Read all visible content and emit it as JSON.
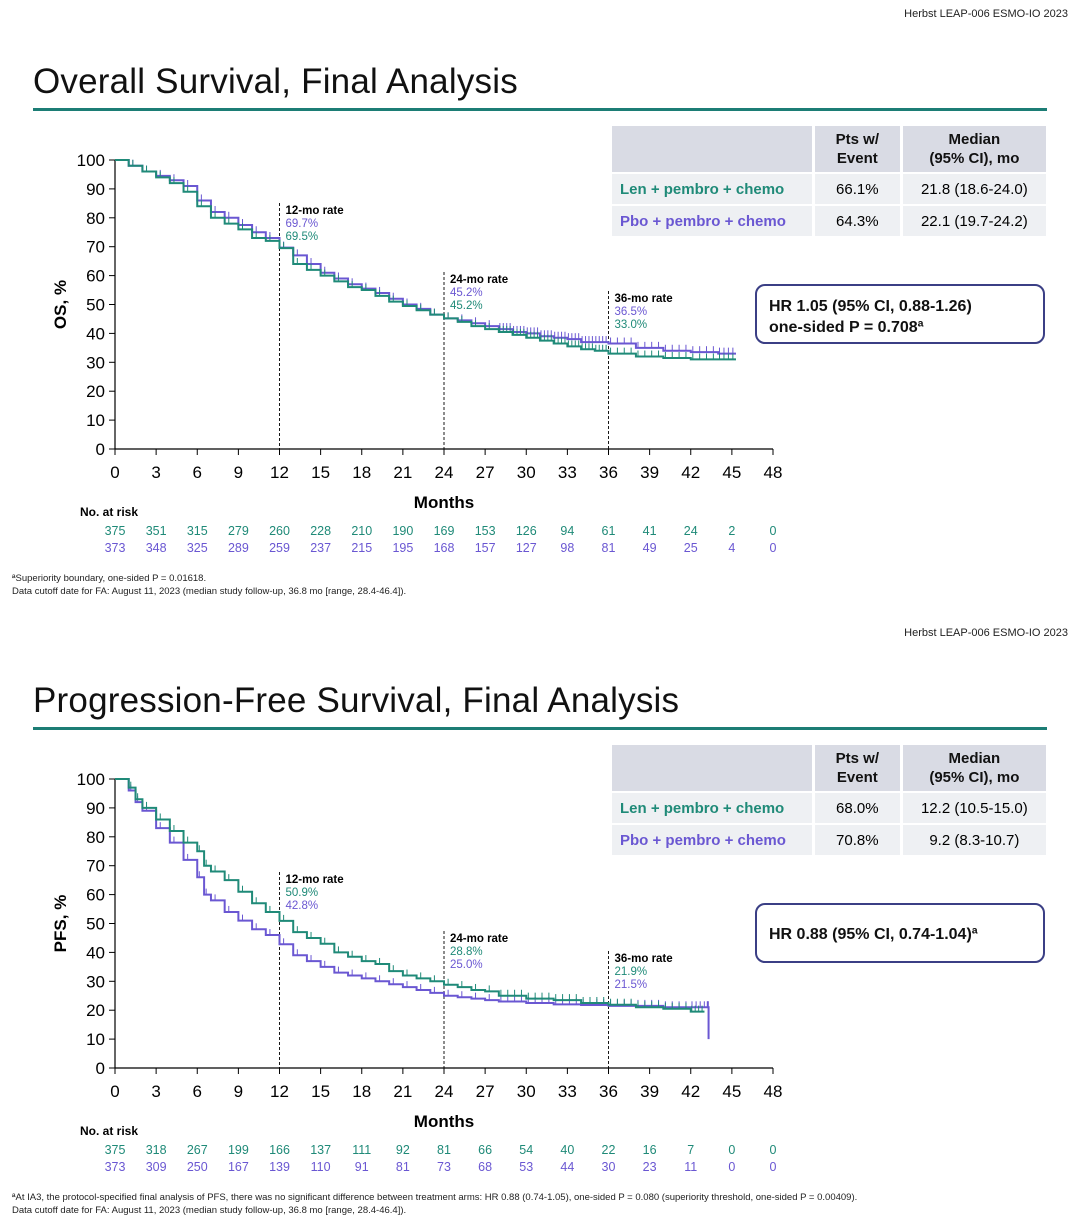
{
  "colors": {
    "len": "#1f8a78",
    "pbo": "#6a57d2",
    "rule": "#1c7d75",
    "box": "#3b3f85"
  },
  "slides": [
    {
      "header": "Herbst LEAP-006  ESMO-IO  2023",
      "title": "Overall Survival, Final Analysis",
      "table": {
        "h1": "Pts w/\nEvent",
        "h2": "Median\n(95% CI), mo",
        "rows": [
          {
            "label": "Len + pembro + chemo",
            "event": "66.1%",
            "median": "21.8 (18.6-24.0)"
          },
          {
            "label": "Pbo + pembro + chemo",
            "event": "64.3%",
            "median": "22.1 (19.7-24.2)"
          }
        ]
      },
      "hr_line1": "HR 1.05 (95%  CI,  0.88-1.26)",
      "hr_line2": "one-sided  P = 0.708ª",
      "footnote1": "ªSuperiority boundary,  one-sided  P = 0.01618.",
      "footnote2": "Data cutoff date for FA: August 11, 2023 (median study follow-up,  36.8 mo [range, 28.4-46.4])."
    },
    {
      "header": "Herbst LEAP-006  ESMO-IO  2023",
      "title": "Progression-Free Survival, Final Analysis",
      "table": {
        "h1": "Pts w/\nEvent",
        "h2": "Median\n(95% CI), mo",
        "rows": [
          {
            "label": "Len + pembro + chemo",
            "event": "68.0%",
            "median": "12.2 (10.5-15.0)"
          },
          {
            "label": "Pbo + pembro + chemo",
            "event": "70.8%",
            "median": "9.2 (8.3-10.7)"
          }
        ]
      },
      "hr_line1": "HR  0.88 (95%  CI,  0.74-1.04)ª",
      "hr_line2": "",
      "footnote1": "ªAt IA3, the protocol-specified final analysis of PFS, there was no significant difference between treatment arms: HR 0.88 (0.74-1.05),  one-sided  P = 0.080 (superiority threshold, one-sided  P = 0.00409).",
      "footnote2": "Data cutoff date for FA: August 11, 2023 (median study follow-up,  36.8 mo [range, 28.4-46.4])."
    }
  ],
  "chart_data": [
    {
      "type": "line",
      "ylabel": "OS, %",
      "xlabel": "Months",
      "xlim": [
        0,
        48
      ],
      "ylim": [
        0,
        100
      ],
      "xticks": [
        0,
        3,
        6,
        9,
        12,
        15,
        18,
        21,
        24,
        27,
        30,
        33,
        36,
        39,
        42,
        45,
        48
      ],
      "yticks": [
        0,
        10,
        20,
        30,
        40,
        50,
        60,
        70,
        80,
        90,
        100
      ],
      "annotations": [
        {
          "x": 12,
          "title": "12-mo rate",
          "values": [
            "69.7%",
            "69.5%"
          ],
          "value_colors": [
            "pbo",
            "len"
          ]
        },
        {
          "x": 24,
          "title": "24-mo rate",
          "values": [
            "45.2%",
            "45.2%"
          ],
          "value_colors": [
            "pbo",
            "len"
          ]
        },
        {
          "x": 36,
          "title": "36-mo rate",
          "values": [
            "36.5%",
            "33.0%"
          ],
          "value_colors": [
            "pbo",
            "len"
          ]
        }
      ],
      "series": [
        {
          "name": "Len + pembro + chemo",
          "color": "len",
          "x": [
            0,
            1,
            2,
            3,
            4,
            5,
            6,
            7,
            8,
            9,
            10,
            11,
            12,
            13,
            14,
            15,
            16,
            17,
            18,
            19,
            20,
            21,
            22,
            23,
            24,
            25,
            26,
            27,
            28,
            29,
            30,
            31,
            32,
            33,
            34,
            35,
            36,
            38,
            40,
            42,
            44,
            45.3
          ],
          "y": [
            100,
            98,
            96,
            94,
            92,
            89,
            84,
            80,
            78,
            76,
            73,
            72,
            69.5,
            64,
            62,
            60,
            58,
            56,
            55,
            53,
            51,
            49.5,
            48,
            46.5,
            45.2,
            44,
            42.5,
            41.5,
            40.5,
            39.5,
            38.5,
            37.5,
            36.5,
            35.5,
            34.5,
            34,
            33,
            32,
            31.5,
            31,
            31,
            31
          ]
        },
        {
          "name": "Pbo + pembro + chemo",
          "color": "pbo",
          "x": [
            0,
            1,
            2,
            3,
            4,
            5,
            6,
            7,
            8,
            9,
            10,
            11,
            12,
            13,
            14,
            15,
            16,
            17,
            18,
            19,
            20,
            21,
            22,
            23,
            24,
            25,
            26,
            27,
            28,
            29,
            30,
            31,
            32,
            33,
            34,
            35,
            36,
            38,
            40,
            42,
            44,
            45.3
          ],
          "y": [
            100,
            98,
            96,
            94.5,
            93,
            91,
            86,
            82,
            80,
            77.5,
            75,
            73,
            69.7,
            67,
            64,
            61,
            59,
            57,
            55.5,
            54,
            52,
            50,
            48.5,
            46.5,
            45.2,
            44.5,
            43.5,
            42.5,
            41.5,
            40.5,
            40,
            39,
            38.5,
            38,
            37,
            37,
            36.5,
            35,
            34,
            33.5,
            33,
            33
          ]
        }
      ],
      "at_risk": {
        "label": "No. at risk",
        "len": [
          "375",
          "351",
          "315",
          "279",
          "260",
          "228",
          "210",
          "190",
          "169",
          "153",
          "126",
          "94",
          "61",
          "41",
          "24",
          "2",
          "0"
        ],
        "pbo": [
          "373",
          "348",
          "325",
          "289",
          "259",
          "237",
          "215",
          "195",
          "168",
          "157",
          "127",
          "98",
          "81",
          "49",
          "25",
          "4",
          "0"
        ]
      }
    },
    {
      "type": "line",
      "ylabel": "PFS, %",
      "xlabel": "Months",
      "xlim": [
        0,
        48
      ],
      "ylim": [
        0,
        100
      ],
      "xticks": [
        0,
        3,
        6,
        9,
        12,
        15,
        18,
        21,
        24,
        27,
        30,
        33,
        36,
        39,
        42,
        45,
        48
      ],
      "yticks": [
        0,
        10,
        20,
        30,
        40,
        50,
        60,
        70,
        80,
        90,
        100
      ],
      "annotations": [
        {
          "x": 12,
          "title": "12-mo rate",
          "values": [
            "50.9%",
            "42.8%"
          ],
          "value_colors": [
            "len",
            "pbo"
          ]
        },
        {
          "x": 24,
          "title": "24-mo rate",
          "values": [
            "28.8%",
            "25.0%"
          ],
          "value_colors": [
            "len",
            "pbo"
          ]
        },
        {
          "x": 36,
          "title": "36-mo rate",
          "values": [
            "21.9%",
            "21.5%"
          ],
          "value_colors": [
            "len",
            "pbo"
          ]
        }
      ],
      "series": [
        {
          "name": "Len + pembro + chemo",
          "color": "len",
          "x": [
            0,
            1,
            1.5,
            2,
            3,
            4,
            5,
            6,
            6.5,
            7,
            8,
            9,
            10,
            11,
            12,
            13,
            14,
            15,
            16,
            17,
            18,
            19,
            20,
            21,
            22,
            23,
            24,
            25,
            26,
            27,
            28,
            30,
            32,
            34,
            36,
            38,
            40,
            42,
            43
          ],
          "y": [
            100,
            97,
            93,
            90,
            86,
            82,
            78,
            75,
            70,
            68,
            65,
            61,
            57,
            54,
            50.9,
            47,
            45,
            43,
            40,
            38.5,
            37,
            36,
            33.5,
            32,
            31,
            30,
            28.8,
            28,
            27,
            26.5,
            25,
            24,
            23.5,
            22.5,
            21.9,
            21,
            20.5,
            19.5,
            19.5
          ]
        },
        {
          "name": "Pbo + pembro + chemo",
          "color": "pbo",
          "x": [
            0,
            1,
            1.5,
            2,
            3,
            4,
            5,
            6,
            6.5,
            7,
            8,
            9,
            10,
            11,
            12,
            13,
            14,
            15,
            16,
            17,
            18,
            19,
            20,
            21,
            22,
            23,
            24,
            25,
            26,
            27,
            28,
            30,
            32,
            34,
            36,
            38,
            40,
            42,
            43.2,
            43.3
          ],
          "y": [
            100,
            96,
            92,
            89,
            83,
            78,
            72,
            66,
            60,
            58,
            54,
            51,
            48,
            46,
            42.8,
            39,
            37,
            35,
            33,
            32,
            31,
            30,
            29,
            28,
            27,
            26,
            25,
            24.5,
            24,
            23.5,
            23,
            22.5,
            22,
            21.8,
            21.5,
            21.5,
            21,
            21,
            21,
            10
          ]
        }
      ],
      "at_risk": {
        "label": "No. at risk",
        "len": [
          "375",
          "318",
          "267",
          "199",
          "166",
          "137",
          "111",
          "92",
          "81",
          "66",
          "54",
          "40",
          "22",
          "16",
          "7",
          "0",
          "0"
        ],
        "pbo": [
          "373",
          "309",
          "250",
          "167",
          "139",
          "110",
          "91",
          "81",
          "73",
          "68",
          "53",
          "44",
          "30",
          "23",
          "11",
          "0",
          "0"
        ]
      }
    }
  ]
}
